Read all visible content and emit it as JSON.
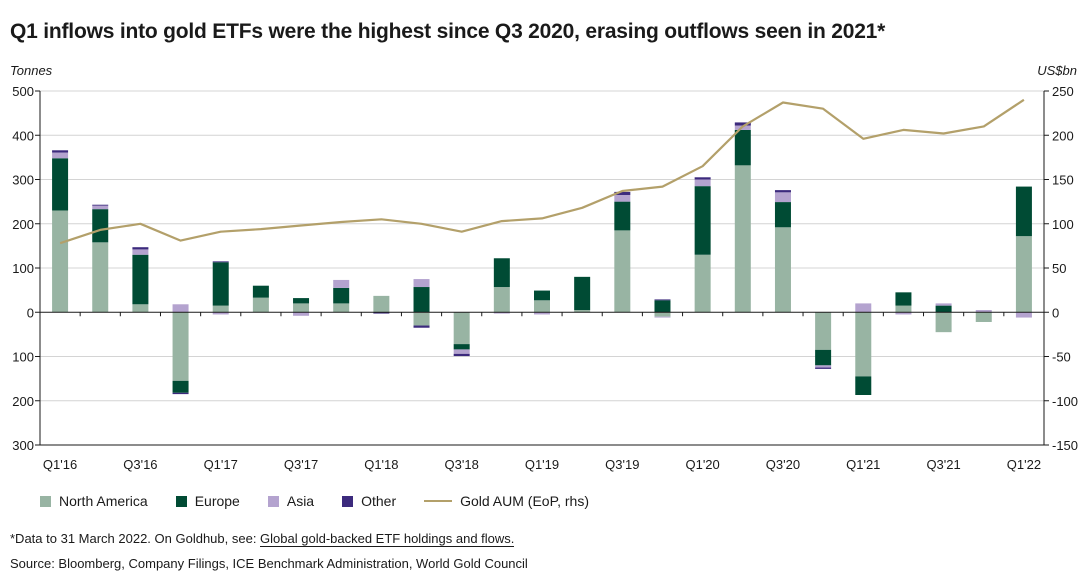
{
  "title": "Q1 inflows into gold ETFs were the highest since Q3 2020, erasing outflows seen in 2021*",
  "left_axis_unit": "Tonnes",
  "right_axis_unit": "US$bn",
  "footnote_prefix": "*Data to 31 March 2022. On Goldhub, see: ",
  "footnote_link": "Global gold-backed ETF holdings and flows.",
  "source": "Source: Bloomberg, Company Filings, ICE Benchmark Administration, World Gold Council",
  "colors": {
    "north_america": "#98b4a3",
    "europe": "#004b34",
    "asia": "#b4a3cf",
    "other": "#3c2a7d",
    "aum_line": "#b3a06a",
    "grid": "#d4d4d4"
  },
  "chart_data": {
    "type": "bar",
    "stacked": true,
    "categories": [
      "Q1'16",
      "Q2'16",
      "Q3'16",
      "Q4'16",
      "Q1'17",
      "Q2'17",
      "Q3'17",
      "Q4'17",
      "Q1'18",
      "Q2'18",
      "Q3'18",
      "Q4'18",
      "Q1'19",
      "Q2'19",
      "Q3'19",
      "Q4'19",
      "Q1'20",
      "Q2'20",
      "Q3'20",
      "Q4'20",
      "Q1'21",
      "Q2'21",
      "Q3'21",
      "Q4'21",
      "Q1'22"
    ],
    "x_tick_labels": [
      "Q1'16",
      "",
      "Q3'16",
      "",
      "Q1'17",
      "",
      "Q3'17",
      "",
      "Q1'18",
      "",
      "Q3'18",
      "",
      "Q1'19",
      "",
      "Q3'19",
      "",
      "Q1'20",
      "",
      "Q3'20",
      "",
      "Q1'21",
      "",
      "Q3'21",
      "",
      "Q1'22"
    ],
    "ylim_left": [
      -300,
      500
    ],
    "left_ticks": [
      500,
      400,
      300,
      200,
      100,
      0,
      -100,
      -200,
      -300
    ],
    "left_tick_labels": [
      "500",
      "400",
      "300",
      "200",
      "100",
      "0",
      "100",
      "200",
      "300"
    ],
    "ylim_right": [
      -150,
      250
    ],
    "right_ticks": [
      250,
      200,
      150,
      100,
      50,
      0,
      -50,
      -100,
      -150
    ],
    "right_tick_labels": [
      "250",
      "200",
      "150",
      "100",
      "50",
      "0",
      "-50",
      "-100",
      "-150"
    ],
    "grid": true,
    "series": [
      {
        "name": "North America",
        "key": "north_america",
        "values": [
          230,
          158,
          18,
          -155,
          15,
          33,
          20,
          20,
          37,
          -30,
          -72,
          57,
          27,
          5,
          185,
          -10,
          130,
          332,
          192,
          -85,
          -145,
          15,
          -45,
          -22,
          172
        ]
      },
      {
        "name": "Europe",
        "key": "europe",
        "values": [
          118,
          75,
          112,
          -27,
          98,
          27,
          12,
          35,
          0,
          57,
          -12,
          65,
          22,
          75,
          65,
          27,
          155,
          80,
          57,
          -35,
          -42,
          30,
          15,
          0,
          112
        ]
      },
      {
        "name": "Asia",
        "key": "asia",
        "values": [
          13,
          8,
          12,
          18,
          -5,
          0,
          -8,
          18,
          0,
          18,
          -10,
          -3,
          -5,
          0,
          15,
          -2,
          15,
          10,
          22,
          -5,
          20,
          -5,
          5,
          5,
          -12
        ]
      },
      {
        "name": "Other",
        "key": "other",
        "values": [
          5,
          2,
          5,
          -3,
          2,
          0,
          0,
          0,
          -3,
          -5,
          -5,
          0,
          0,
          0,
          7,
          2,
          5,
          7,
          5,
          -3,
          0,
          0,
          0,
          0,
          0
        ]
      }
    ],
    "line": {
      "name": "Gold AUM (EoP, rhs)",
      "axis": "right",
      "values": [
        78,
        93,
        100,
        81,
        91,
        94,
        98,
        102,
        105,
        100,
        91,
        103,
        106,
        118,
        137,
        142,
        165,
        210,
        237,
        230,
        196,
        206,
        202,
        210,
        240
      ]
    },
    "legend_position": "bottom"
  }
}
